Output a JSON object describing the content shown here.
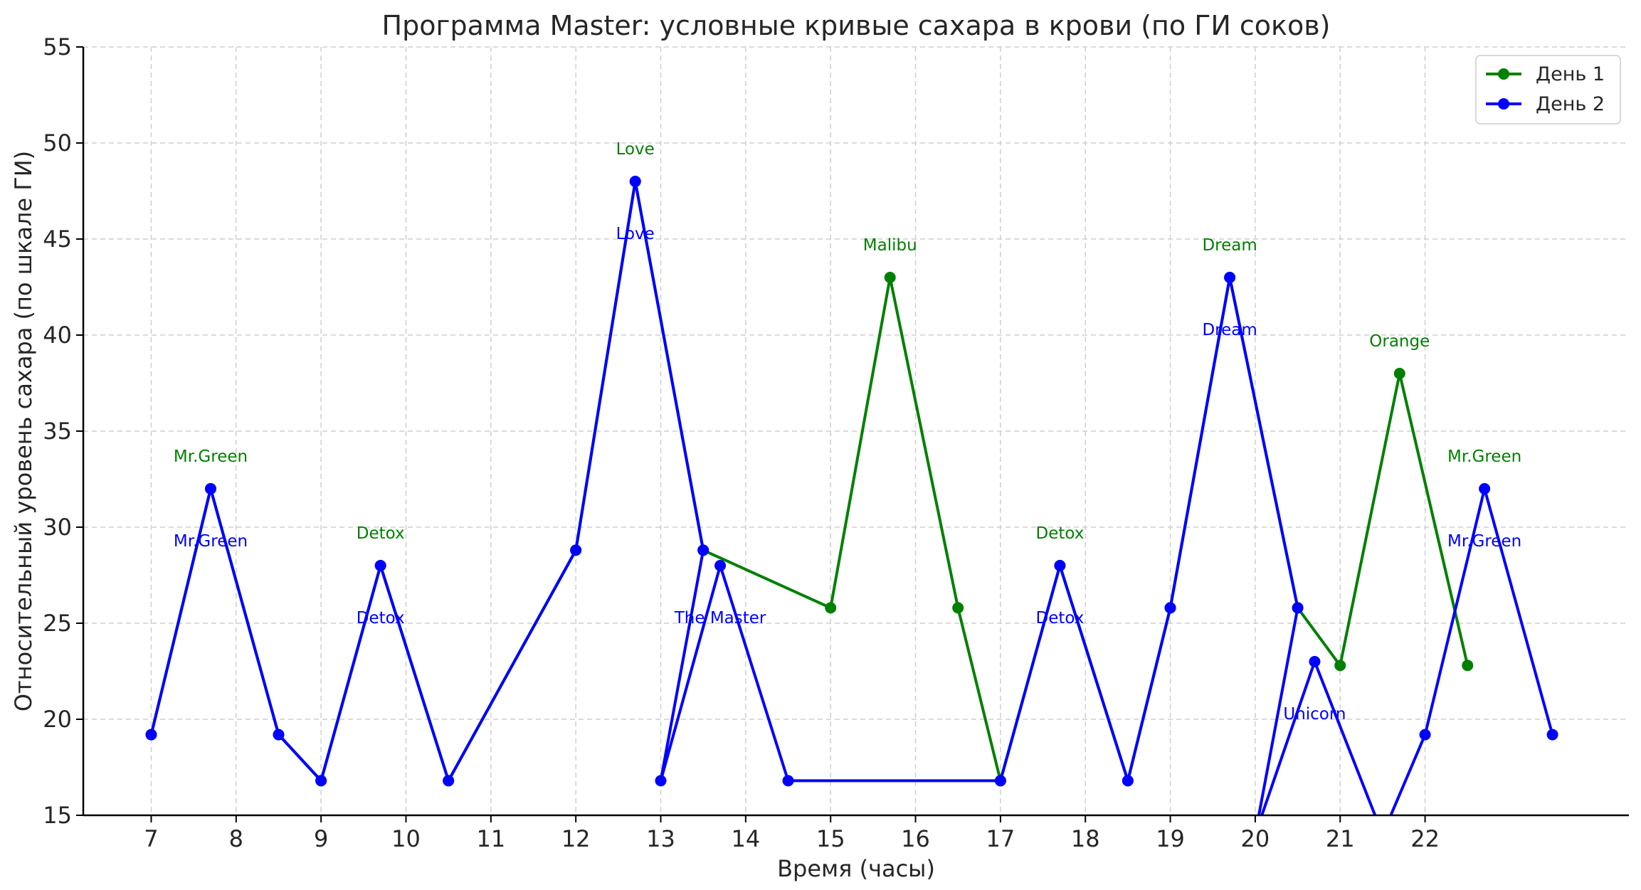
{
  "chart_data": {
    "type": "line",
    "title": "Программа Master: условные кривые сахара в крови (по ГИ соков)",
    "xlabel": "Время (часы)",
    "ylabel": "Относительный уровень сахара (по шкале ГИ)",
    "xlim": [
      6.2,
      24.4
    ],
    "ylim": [
      15,
      55
    ],
    "xticks": [
      7,
      8,
      9,
      10,
      11,
      12,
      13,
      14,
      15,
      16,
      17,
      18,
      19,
      20,
      21,
      22
    ],
    "yticks": [
      15,
      20,
      25,
      30,
      35,
      40,
      45,
      50,
      55
    ],
    "grid": true,
    "legend_position": "top-right",
    "series": [
      {
        "name": "День 1",
        "color": "#008000",
        "points": [
          {
            "x": 7.0,
            "y": 19.2
          },
          {
            "x": 7.7,
            "y": 32.0
          },
          {
            "x": 8.5,
            "y": 19.2
          },
          {
            "x": 9.0,
            "y": 16.8
          },
          {
            "x": 9.7,
            "y": 28.0
          },
          {
            "x": 10.5,
            "y": 16.8
          },
          {
            "x": 12.0,
            "y": 28.8
          },
          {
            "x": 12.7,
            "y": 48.0
          },
          {
            "x": 13.5,
            "y": 28.8
          },
          {
            "x": 15.0,
            "y": 25.8
          },
          {
            "x": 15.7,
            "y": 43.0
          },
          {
            "x": 16.5,
            "y": 25.8
          },
          {
            "x": 17.0,
            "y": 16.8
          },
          {
            "x": 17.7,
            "y": 28.0
          },
          {
            "x": 18.5,
            "y": 16.8
          },
          {
            "x": 19.0,
            "y": 25.8
          },
          {
            "x": 19.7,
            "y": 43.0
          },
          {
            "x": 20.5,
            "y": 25.8
          },
          {
            "x": 21.0,
            "y": 22.8
          },
          {
            "x": 21.7,
            "y": 38.0
          },
          {
            "x": 22.5,
            "y": 22.8
          }
        ],
        "annotations": [
          {
            "x": 7.7,
            "y": 33.4,
            "text": "Mr.Green"
          },
          {
            "x": 9.7,
            "y": 29.4,
            "text": "Detox"
          },
          {
            "x": 12.7,
            "y": 49.4,
            "text": "Love"
          },
          {
            "x": 15.7,
            "y": 44.4,
            "text": "Malibu"
          },
          {
            "x": 17.7,
            "y": 29.4,
            "text": "Detox"
          },
          {
            "x": 19.7,
            "y": 44.4,
            "text": "Dream"
          },
          {
            "x": 21.7,
            "y": 39.4,
            "text": "Orange"
          },
          {
            "x": 22.7,
            "y": 33.4,
            "text": "Mr.Green"
          }
        ]
      },
      {
        "name": "День 2",
        "color": "#0000ff",
        "points": [
          {
            "x": 7.0,
            "y": 19.2
          },
          {
            "x": 7.7,
            "y": 32.0
          },
          {
            "x": 8.5,
            "y": 19.2
          },
          {
            "x": 9.0,
            "y": 16.8
          },
          {
            "x": 9.7,
            "y": 28.0
          },
          {
            "x": 10.5,
            "y": 16.8
          },
          {
            "x": 12.0,
            "y": 28.8
          },
          {
            "x": 12.7,
            "y": 48.0
          },
          {
            "x": 13.5,
            "y": 28.8
          },
          {
            "x": 13.0,
            "y": 16.8
          },
          {
            "x": 13.7,
            "y": 28.0
          },
          {
            "x": 14.5,
            "y": 16.8
          },
          {
            "x": 17.0,
            "y": 16.8
          },
          {
            "x": 17.7,
            "y": 28.0
          },
          {
            "x": 18.5,
            "y": 16.8
          },
          {
            "x": 19.0,
            "y": 25.8
          },
          {
            "x": 19.7,
            "y": 43.0
          },
          {
            "x": 20.5,
            "y": 25.8
          },
          {
            "x": 20.0,
            "y": 14.0
          },
          {
            "x": 20.7,
            "y": 23.0
          },
          {
            "x": 21.5,
            "y": 14.0
          },
          {
            "x": 22.0,
            "y": 19.2
          },
          {
            "x": 22.7,
            "y": 32.0
          },
          {
            "x": 23.5,
            "y": 19.2
          }
        ],
        "annotations": [
          {
            "x": 7.7,
            "y": 29.0,
            "text": "Mr.Green"
          },
          {
            "x": 9.7,
            "y": 25.0,
            "text": "Detox"
          },
          {
            "x": 12.7,
            "y": 45.0,
            "text": "Love"
          },
          {
            "x": 13.7,
            "y": 25.0,
            "text": "The Master"
          },
          {
            "x": 17.7,
            "y": 25.0,
            "text": "Detox"
          },
          {
            "x": 19.7,
            "y": 40.0,
            "text": "Dream"
          },
          {
            "x": 20.7,
            "y": 20.0,
            "text": "Unicorn"
          },
          {
            "x": 22.7,
            "y": 29.0,
            "text": "Mr.Green"
          }
        ]
      }
    ]
  }
}
